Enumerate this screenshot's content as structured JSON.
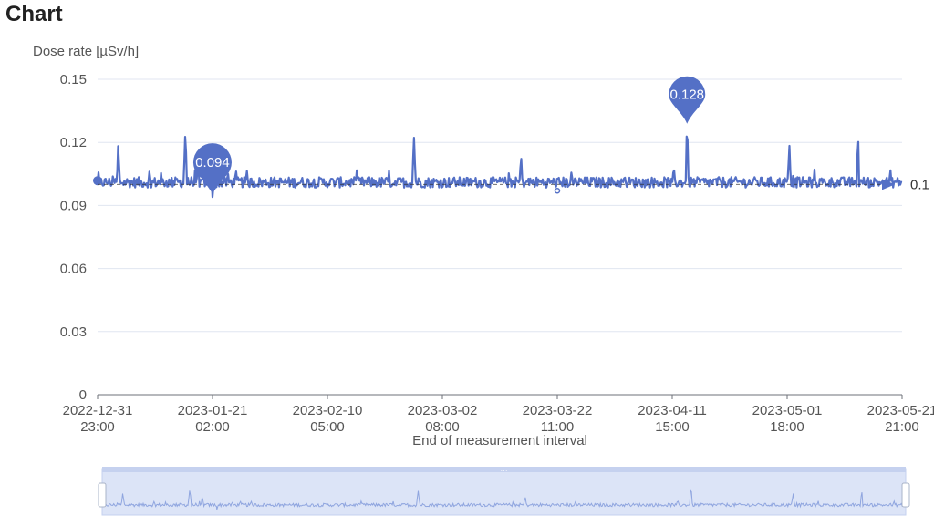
{
  "page": {
    "title": "Chart"
  },
  "chart_data": {
    "type": "line",
    "title": "",
    "ylabel": "Dose rate [µSv/h]",
    "xlabel": "End of measurement interval",
    "ylim": [
      0,
      0.15
    ],
    "yticks": [
      "0",
      "0.03",
      "0.06",
      "0.09",
      "0.12",
      "0.15"
    ],
    "x_tick_labels": [
      [
        "2022-12-31",
        "23:00"
      ],
      [
        "2023-01-21",
        "02:00"
      ],
      [
        "2023-02-10",
        "05:00"
      ],
      [
        "2023-03-02",
        "08:00"
      ],
      [
        "2023-03-22",
        "11:00"
      ],
      [
        "2023-04-11",
        "15:00"
      ],
      [
        "2023-05-01",
        "18:00"
      ],
      [
        "2023-05-21",
        "21:00"
      ]
    ],
    "grid": true,
    "legend": "none",
    "series": [
      {
        "x_start": "2022-12-31 23:00",
        "x_end": "2023-05-21 21:00",
        "baseline": 0.101,
        "noise_amplitude": 0.0025,
        "spikes": [
          {
            "x": "2023-01-04 14:00",
            "y": 0.12
          },
          {
            "x": "2023-01-16 08:00",
            "y": 0.125
          },
          {
            "x": "2023-01-18 13:00",
            "y": 0.116
          },
          {
            "x": "2023-02-25 09:00",
            "y": 0.123
          },
          {
            "x": "2023-03-16 03:00",
            "y": 0.116
          },
          {
            "x": "2023-04-14 05:00",
            "y": 0.128
          },
          {
            "x": "2023-05-02 03:00",
            "y": 0.12
          },
          {
            "x": "2023-05-14 04:00",
            "y": 0.123
          }
        ]
      }
    ],
    "markers": {
      "min": {
        "label": "0.094",
        "x": "2023-01-21 02:00",
        "y": 0.094
      },
      "max": {
        "label": "0.128",
        "x": "2023-04-14 05:00",
        "y": 0.128
      }
    },
    "average_line": {
      "value": 0.1,
      "label": "0.1"
    }
  },
  "colors": {
    "series": "#5470c6",
    "grid": "#e0e6f1",
    "axis": "#6e7079",
    "zoom_fill": "#dce4f7",
    "zoom_border": "#c5d1ef"
  }
}
